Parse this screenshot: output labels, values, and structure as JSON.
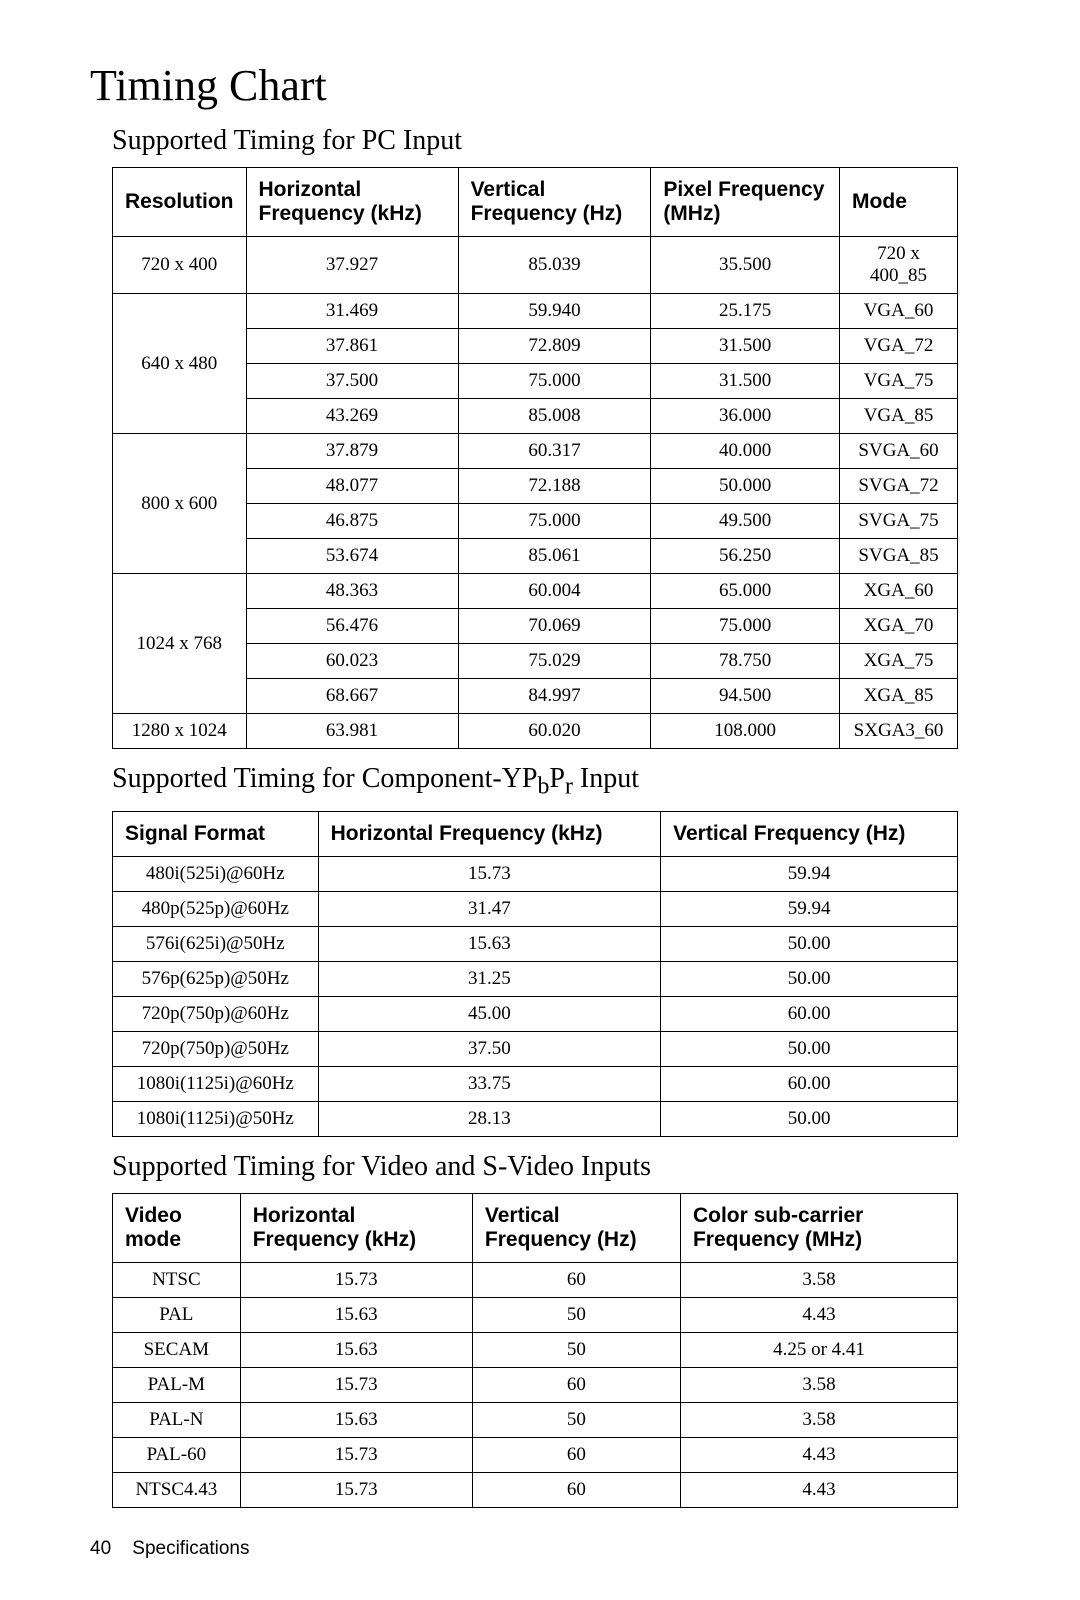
{
  "page_title": "Timing Chart",
  "section1": {
    "title": "Supported Timing for PC Input",
    "columns": [
      "Resolution",
      "Horizontal Frequency (kHz)",
      "Vertical Frequency (Hz)",
      "Pixel Frequency (MHz)",
      "Mode"
    ],
    "groups": [
      {
        "res": "720 x 400",
        "rows": [
          [
            "37.927",
            "85.039",
            "35.500",
            "720 x 400_85"
          ]
        ]
      },
      {
        "res": "640 x 480",
        "rows": [
          [
            "31.469",
            "59.940",
            "25.175",
            "VGA_60"
          ],
          [
            "37.861",
            "72.809",
            "31.500",
            "VGA_72"
          ],
          [
            "37.500",
            "75.000",
            "31.500",
            "VGA_75"
          ],
          [
            "43.269",
            "85.008",
            "36.000",
            "VGA_85"
          ]
        ]
      },
      {
        "res": "800 x 600",
        "rows": [
          [
            "37.879",
            "60.317",
            "40.000",
            "SVGA_60"
          ],
          [
            "48.077",
            "72.188",
            "50.000",
            "SVGA_72"
          ],
          [
            "46.875",
            "75.000",
            "49.500",
            "SVGA_75"
          ],
          [
            "53.674",
            "85.061",
            "56.250",
            "SVGA_85"
          ]
        ]
      },
      {
        "res": "1024 x 768",
        "rows": [
          [
            "48.363",
            "60.004",
            "65.000",
            "XGA_60"
          ],
          [
            "56.476",
            "70.069",
            "75.000",
            "XGA_70"
          ],
          [
            "60.023",
            "75.029",
            "78.750",
            "XGA_75"
          ],
          [
            "68.667",
            "84.997",
            "94.500",
            "XGA_85"
          ]
        ]
      },
      {
        "res": "1280 x 1024",
        "rows": [
          [
            "63.981",
            "60.020",
            "108.000",
            "SXGA3_60"
          ]
        ]
      }
    ]
  },
  "section2": {
    "title": "Supported Timing for Component-YPbPr Input",
    "columns": [
      "Signal Format",
      "Horizontal Frequency (kHz)",
      "Vertical Frequency (Hz)"
    ],
    "rows": [
      [
        "480i(525i)@60Hz",
        "15.73",
        "59.94"
      ],
      [
        "480p(525p)@60Hz",
        "31.47",
        "59.94"
      ],
      [
        "576i(625i)@50Hz",
        "15.63",
        "50.00"
      ],
      [
        "576p(625p)@50Hz",
        "31.25",
        "50.00"
      ],
      [
        "720p(750p)@60Hz",
        "45.00",
        "60.00"
      ],
      [
        "720p(750p)@50Hz",
        "37.50",
        "50.00"
      ],
      [
        "1080i(1125i)@60Hz",
        "33.75",
        "60.00"
      ],
      [
        "1080i(1125i)@50Hz",
        "28.13",
        "50.00"
      ]
    ]
  },
  "section3": {
    "title": "Supported Timing for Video and S-Video Inputs",
    "columns": [
      "Video mode",
      "Horizontal Frequency (kHz)",
      "Vertical Frequency (Hz)",
      "Color sub-carrier Frequency (MHz)"
    ],
    "rows": [
      [
        "NTSC",
        "15.73",
        "60",
        "3.58"
      ],
      [
        "PAL",
        "15.63",
        "50",
        "4.43"
      ],
      [
        "SECAM",
        "15.63",
        "50",
        "4.25 or 4.41"
      ],
      [
        "PAL-M",
        "15.73",
        "60",
        "3.58"
      ],
      [
        "PAL-N",
        "15.63",
        "50",
        "3.58"
      ],
      [
        "PAL-60",
        "15.73",
        "60",
        "4.43"
      ],
      [
        "NTSC4.43",
        "15.73",
        "60",
        "4.43"
      ]
    ]
  },
  "footer": {
    "page_number": "40",
    "label": "Specifications"
  }
}
